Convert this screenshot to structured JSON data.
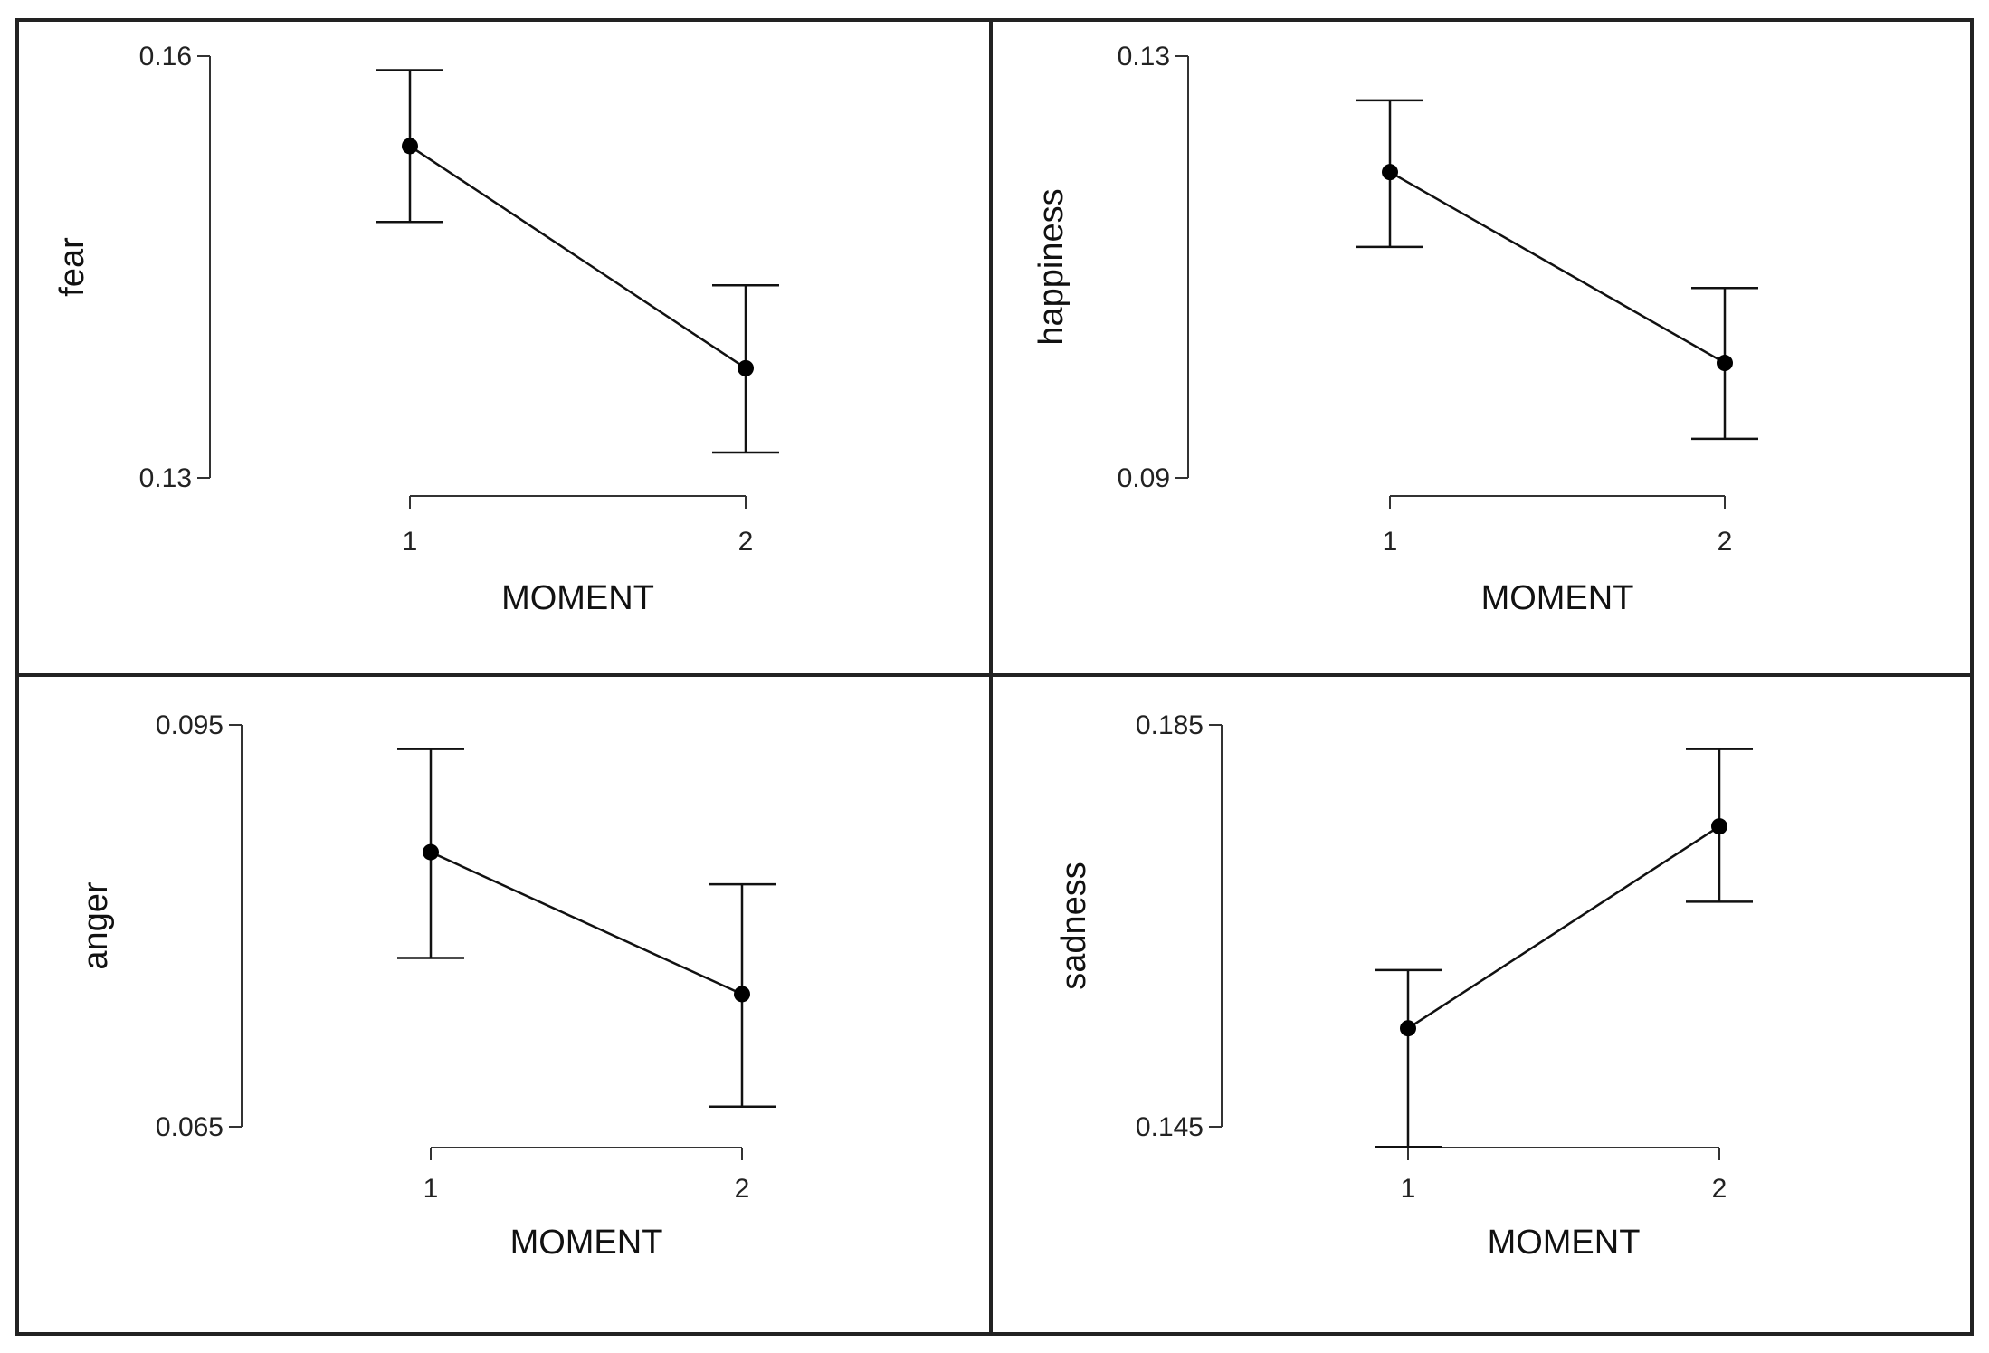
{
  "chart_data": [
    {
      "type": "line",
      "title": "",
      "xlabel": "MOMENT",
      "ylabel": "fear",
      "categories": [
        "1",
        "2"
      ],
      "yticks": [
        "0.13",
        "0.16"
      ],
      "ylim": [
        0.13,
        0.16
      ],
      "grid": false,
      "series": [
        {
          "values": [
            0.1536,
            0.1378
          ],
          "lower": [
            0.1482,
            0.1318
          ],
          "upper": [
            0.159,
            0.1437
          ]
        }
      ]
    },
    {
      "type": "line",
      "title": "",
      "xlabel": "MOMENT",
      "ylabel": "happiness",
      "categories": [
        "1",
        "2"
      ],
      "yticks": [
        "0.09",
        "0.13"
      ],
      "ylim": [
        0.09,
        0.13
      ],
      "grid": false,
      "series": [
        {
          "values": [
            0.119,
            0.1009
          ],
          "lower": [
            0.1119,
            0.0937
          ],
          "upper": [
            0.1258,
            0.108
          ]
        }
      ]
    },
    {
      "type": "line",
      "title": "",
      "xlabel": "MOMENT",
      "ylabel": "anger",
      "categories": [
        "1",
        "2"
      ],
      "yticks": [
        "0.065",
        "0.095"
      ],
      "ylim": [
        0.065,
        0.095
      ],
      "grid": false,
      "series": [
        {
          "values": [
            0.0855,
            0.0749
          ],
          "lower": [
            0.0776,
            0.0665
          ],
          "upper": [
            0.0932,
            0.0831
          ]
        }
      ]
    },
    {
      "type": "line",
      "title": "",
      "xlabel": "MOMENT",
      "ylabel": "sadness",
      "categories": [
        "1",
        "2"
      ],
      "yticks": [
        "0.145",
        "0.185"
      ],
      "ylim": [
        0.145,
        0.185
      ],
      "grid": false,
      "series": [
        {
          "values": [
            0.1548,
            0.1749
          ],
          "lower": [
            0.143,
            0.1674
          ],
          "upper": [
            0.1606,
            0.1826
          ]
        }
      ]
    }
  ]
}
